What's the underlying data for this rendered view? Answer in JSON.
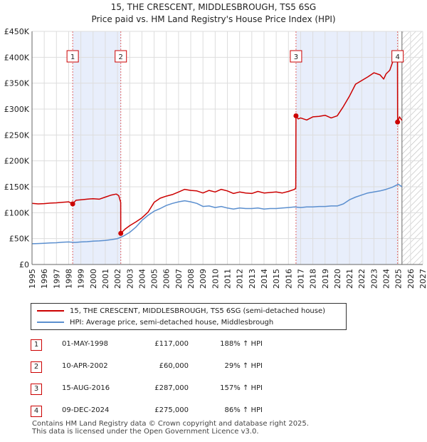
{
  "chart_data": {
    "type": "line",
    "title": "15, THE CRESCENT, MIDDLESBROUGH, TS5 6SG",
    "subtitle": "Price paid vs. HM Land Registry's House Price Index (HPI)",
    "xlabel": "",
    "ylabel": "",
    "xlim": [
      1995,
      2027
    ],
    "ylim": [
      0,
      450000
    ],
    "x_ticks": [
      1995,
      1996,
      1997,
      1998,
      1999,
      2000,
      2001,
      2002,
      2003,
      2004,
      2005,
      2006,
      2007,
      2008,
      2009,
      2010,
      2011,
      2012,
      2013,
      2014,
      2015,
      2016,
      2017,
      2018,
      2019,
      2020,
      2021,
      2022,
      2023,
      2024,
      2025,
      2026,
      2027
    ],
    "y_ticks": [
      {
        "value": 0,
        "label": "£0"
      },
      {
        "value": 50000,
        "label": "£50K"
      },
      {
        "value": 100000,
        "label": "£100K"
      },
      {
        "value": 150000,
        "label": "£150K"
      },
      {
        "value": 200000,
        "label": "£200K"
      },
      {
        "value": 250000,
        "label": "£250K"
      },
      {
        "value": 300000,
        "label": "£300K"
      },
      {
        "value": 350000,
        "label": "£350K"
      },
      {
        "value": 400000,
        "label": "£400K"
      },
      {
        "value": 450000,
        "label": "£450K"
      }
    ],
    "grid": true,
    "shaded_periods": [
      [
        1998.33,
        2002.27
      ],
      [
        2016.62,
        2024.94
      ]
    ],
    "future_hatch_from": 2025.3,
    "series": [
      {
        "name": "15, THE CRESCENT, MIDDLESBROUGH, TS5 6SG (semi-detached house)",
        "color": "#cc0000",
        "x": [
          1995.0,
          1995.5,
          1996.0,
          1996.5,
          1997.0,
          1997.5,
          1998.0,
          1998.33,
          1998.6,
          1999.0,
          1999.5,
          2000.0,
          2000.5,
          2001.0,
          2001.5,
          2001.9,
          2002.1,
          2002.26,
          2002.27,
          2002.6,
          2003.0,
          2003.5,
          2004.0,
          2004.5,
          2005.0,
          2005.5,
          2006.0,
          2006.5,
          2007.0,
          2007.5,
          2008.0,
          2008.5,
          2009.0,
          2009.5,
          2010.0,
          2010.5,
          2011.0,
          2011.5,
          2012.0,
          2012.5,
          2013.0,
          2013.5,
          2014.0,
          2014.5,
          2015.0,
          2015.5,
          2016.0,
          2016.5,
          2016.6,
          2016.62,
          2016.8,
          2017.0,
          2017.5,
          2018.0,
          2018.5,
          2019.0,
          2019.5,
          2020.0,
          2020.5,
          2021.0,
          2021.5,
          2022.0,
          2022.5,
          2023.0,
          2023.5,
          2023.8,
          2024.0,
          2024.3,
          2024.6,
          2024.8,
          2024.93,
          2024.94,
          2025.1,
          2025.3
        ],
        "values": [
          118000,
          117000,
          117500,
          118500,
          119000,
          120000,
          121000,
          117000,
          124000,
          125000,
          126000,
          127000,
          126000,
          130000,
          134000,
          136000,
          133000,
          120000,
          60000,
          68000,
          75000,
          82000,
          90000,
          101000,
          120000,
          128000,
          132000,
          135000,
          140000,
          145000,
          143000,
          142000,
          138000,
          143000,
          140000,
          145000,
          142000,
          137000,
          140000,
          138000,
          137000,
          141000,
          138000,
          139000,
          140000,
          138000,
          141000,
          145000,
          148000,
          287000,
          281000,
          283000,
          279000,
          285000,
          286000,
          288000,
          283000,
          287000,
          305000,
          325000,
          348000,
          355000,
          362000,
          370000,
          366000,
          358000,
          368000,
          375000,
          395000,
          410000,
          405000,
          275000,
          285000,
          278000
        ]
      },
      {
        "name": "HPI: Average price, semi-detached house, Middlesbrough",
        "color": "#5b8fcf",
        "x": [
          1995.0,
          1995.5,
          1996.0,
          1996.5,
          1997.0,
          1997.5,
          1998.0,
          1998.5,
          1999.0,
          1999.5,
          2000.0,
          2000.5,
          2001.0,
          2001.5,
          2002.0,
          2002.5,
          2003.0,
          2003.5,
          2004.0,
          2004.5,
          2005.0,
          2005.5,
          2006.0,
          2006.5,
          2007.0,
          2007.5,
          2008.0,
          2008.5,
          2009.0,
          2009.5,
          2010.0,
          2010.5,
          2011.0,
          2011.5,
          2012.0,
          2012.5,
          2013.0,
          2013.5,
          2014.0,
          2014.5,
          2015.0,
          2015.5,
          2016.0,
          2016.5,
          2017.0,
          2017.5,
          2018.0,
          2018.5,
          2019.0,
          2019.5,
          2020.0,
          2020.5,
          2021.0,
          2021.5,
          2022.0,
          2022.5,
          2023.0,
          2023.5,
          2024.0,
          2024.5,
          2025.0,
          2025.3
        ],
        "values": [
          40000,
          40500,
          41000,
          41500,
          42000,
          43000,
          43500,
          42500,
          43500,
          44000,
          45000,
          45500,
          46500,
          48000,
          50000,
          55000,
          62000,
          72000,
          85000,
          95000,
          103000,
          108000,
          114000,
          118000,
          121000,
          123000,
          121000,
          118000,
          112000,
          113000,
          110000,
          112000,
          109000,
          107000,
          109000,
          108000,
          108000,
          109000,
          107000,
          108000,
          108000,
          109000,
          110000,
          111000,
          110000,
          111000,
          111000,
          112000,
          112000,
          113000,
          113000,
          117000,
          125000,
          130000,
          134000,
          138000,
          140000,
          142000,
          145000,
          149000,
          155000,
          150000
        ]
      }
    ],
    "sale_markers": [
      {
        "id": "1",
        "x": 1998.33,
        "value": 117000
      },
      {
        "id": "2",
        "x": 2002.27,
        "value": 60000
      },
      {
        "id": "3",
        "x": 2016.62,
        "value": 287000
      },
      {
        "id": "4",
        "x": 2024.94,
        "value": 275000
      }
    ]
  },
  "legend": {
    "items": [
      {
        "label": "15, THE CRESCENT, MIDDLESBROUGH, TS5 6SG (semi-detached house)",
        "color": "#cc0000"
      },
      {
        "label": "HPI: Average price, semi-detached house, Middlesbrough",
        "color": "#5b8fcf"
      }
    ]
  },
  "sales": [
    {
      "num": "1",
      "date": "01-MAY-1998",
      "price": "£117,000",
      "hpi": "188% ↑ HPI"
    },
    {
      "num": "2",
      "date": "10-APR-2002",
      "price": "£60,000",
      "hpi": "29% ↑ HPI"
    },
    {
      "num": "3",
      "date": "15-AUG-2016",
      "price": "£287,000",
      "hpi": "157% ↑ HPI"
    },
    {
      "num": "4",
      "date": "09-DEC-2024",
      "price": "£275,000",
      "hpi": "86% ↑ HPI"
    }
  ],
  "footer": {
    "line1": "Contains HM Land Registry data © Crown copyright and database right 2025.",
    "line2": "This data is licensed under the Open Government Licence v3.0."
  }
}
